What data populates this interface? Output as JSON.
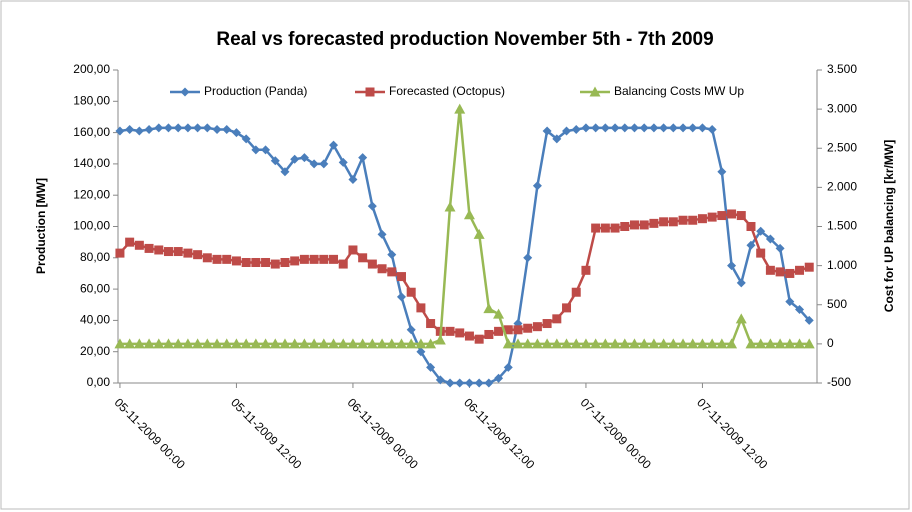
{
  "chart_data": {
    "type": "line",
    "title": "Real vs forecasted production  November 5th - 7th 2009",
    "ylabel": "Production [MW]",
    "y2label": "Cost for UP balancing [kr/MW]",
    "categories": [
      "05-11-2009 00:00",
      null,
      null,
      null,
      null,
      null,
      null,
      null,
      null,
      null,
      null,
      null,
      "05-11-2009 12:00",
      null,
      null,
      null,
      null,
      null,
      null,
      null,
      null,
      null,
      null,
      null,
      "06-11-2009 00:00",
      null,
      null,
      null,
      null,
      null,
      null,
      null,
      null,
      null,
      null,
      null,
      "06-11-2009 12:00",
      null,
      null,
      null,
      null,
      null,
      null,
      null,
      null,
      null,
      null,
      null,
      "07-11-2009 00:00",
      null,
      null,
      null,
      null,
      null,
      null,
      null,
      null,
      null,
      null,
      null,
      "07-11-2009 12:00",
      null,
      null,
      null,
      null,
      null,
      null,
      null,
      null,
      null,
      null,
      null
    ],
    "series": [
      {
        "name": "Production (Panda)",
        "color": "#4a7ebb",
        "marker": "diamond",
        "values": [
          161,
          162,
          161,
          162,
          163,
          163,
          163,
          163,
          163,
          163,
          162,
          162,
          160,
          156,
          149,
          149,
          142,
          135,
          143,
          144,
          140,
          140,
          152,
          141,
          130,
          144,
          113,
          95,
          82,
          55,
          34,
          20,
          10,
          2,
          0,
          0,
          0,
          0,
          0,
          3,
          10,
          38,
          80,
          126,
          161,
          156,
          161,
          162,
          163,
          163,
          163,
          163,
          163,
          163,
          163,
          163,
          163,
          163,
          163,
          163,
          163,
          162,
          135,
          75,
          64,
          88,
          97,
          92,
          86,
          52,
          47,
          40
        ]
      },
      {
        "name": "Forecasted (Octopus)",
        "color": "#be4b48",
        "marker": "square",
        "values": [
          83,
          90,
          88,
          86,
          85,
          84,
          84,
          83,
          82,
          80,
          79,
          79,
          78,
          77,
          77,
          77,
          76,
          77,
          78,
          79,
          79,
          79,
          79,
          76,
          85,
          80,
          76,
          73,
          71,
          68,
          58,
          48,
          38,
          33,
          33,
          32,
          30,
          28,
          31,
          33,
          34,
          34,
          35,
          36,
          38,
          41,
          48,
          58,
          72,
          99,
          99,
          99,
          100,
          101,
          101,
          102,
          103,
          103,
          104,
          104,
          105,
          106,
          107,
          108,
          107,
          100,
          83,
          72,
          71,
          70,
          72,
          74
        ]
      },
      {
        "name": "Balancing Costs MW Up",
        "color": "#98b954",
        "marker": "triangle",
        "axis": "y2",
        "values": [
          0,
          0,
          0,
          0,
          0,
          0,
          0,
          0,
          0,
          0,
          0,
          0,
          0,
          0,
          0,
          0,
          0,
          0,
          0,
          0,
          0,
          0,
          0,
          0,
          0,
          0,
          0,
          0,
          0,
          0,
          0,
          0,
          0,
          50,
          1750,
          3000,
          1650,
          1400,
          450,
          380,
          0,
          0,
          0,
          0,
          0,
          0,
          0,
          0,
          0,
          0,
          0,
          0,
          0,
          0,
          0,
          0,
          0,
          0,
          0,
          0,
          0,
          0,
          0,
          0,
          320,
          0,
          0,
          0,
          0,
          0,
          0,
          0
        ]
      }
    ],
    "ylim": [
      0,
      200
    ],
    "yticks": [
      {
        "value": 0,
        "label": "0,00"
      },
      {
        "value": 20,
        "label": "20,00"
      },
      {
        "value": 40,
        "label": "40,00"
      },
      {
        "value": 60,
        "label": "60,00"
      },
      {
        "value": 80,
        "label": "80,00"
      },
      {
        "value": 100,
        "label": "100,00"
      },
      {
        "value": 120,
        "label": "120,00"
      },
      {
        "value": 140,
        "label": "140,00"
      },
      {
        "value": 160,
        "label": "160,00"
      },
      {
        "value": 180,
        "label": "180,00"
      },
      {
        "value": 200,
        "label": "200,00"
      }
    ],
    "y2lim": [
      -500,
      3500
    ],
    "y2ticks": [
      -500,
      0,
      500,
      {
        "value": 1000,
        "label": "1.000"
      },
      {
        "value": 1500,
        "label": "1.500"
      },
      {
        "value": 2000,
        "label": "2.000"
      },
      {
        "value": 2500,
        "label": "2.500"
      },
      {
        "value": 3000,
        "label": "3.000"
      },
      {
        "value": 3500,
        "label": "3.500"
      }
    ],
    "legend": "top"
  }
}
